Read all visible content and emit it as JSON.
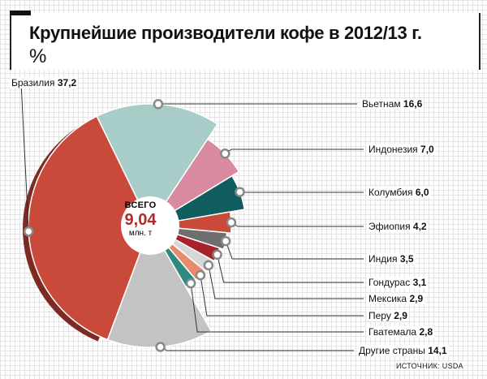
{
  "chart_data": {
    "type": "pie",
    "title": "Крупнейшие производители кофе в 2012/13 г.",
    "subtitle": "%",
    "center": {
      "line1": "ВСЕГО",
      "line2": "9,04",
      "line3": "млн. т"
    },
    "source": "ИСТОЧНИК: USDA",
    "slices": [
      {
        "name": "Вьетнам",
        "value": 16.6,
        "value_label": "16,6",
        "color": "#a8cdc8"
      },
      {
        "name": "Индонезия",
        "value": 7.0,
        "value_label": "7,0",
        "color": "#d98aa0"
      },
      {
        "name": "Колумбия",
        "value": 6.0,
        "value_label": "6,0",
        "color": "#0f5d5e"
      },
      {
        "name": "Эфиопия",
        "value": 4.2,
        "value_label": "4,2",
        "color": "#c94a3b"
      },
      {
        "name": "Индия",
        "value": 3.5,
        "value_label": "3,5",
        "color": "#6e6e6e"
      },
      {
        "name": "Гондурас",
        "value": 3.1,
        "value_label": "3,1",
        "color": "#a8222c"
      },
      {
        "name": "Мексика",
        "value": 2.9,
        "value_label": "2,9",
        "color": "#d6d6d6"
      },
      {
        "name": "Перу",
        "value": 2.9,
        "value_label": "2,9",
        "color": "#e88a6e"
      },
      {
        "name": "Гватемала",
        "value": 2.8,
        "value_label": "2,8",
        "color": "#2e8a80"
      },
      {
        "name": "Другие страны",
        "value": 14.1,
        "value_label": "14,1",
        "color": "#c3c3c3"
      },
      {
        "name": "Бразилия",
        "value": 37.2,
        "value_label": "37,2",
        "color": "#c94a3b"
      }
    ]
  }
}
